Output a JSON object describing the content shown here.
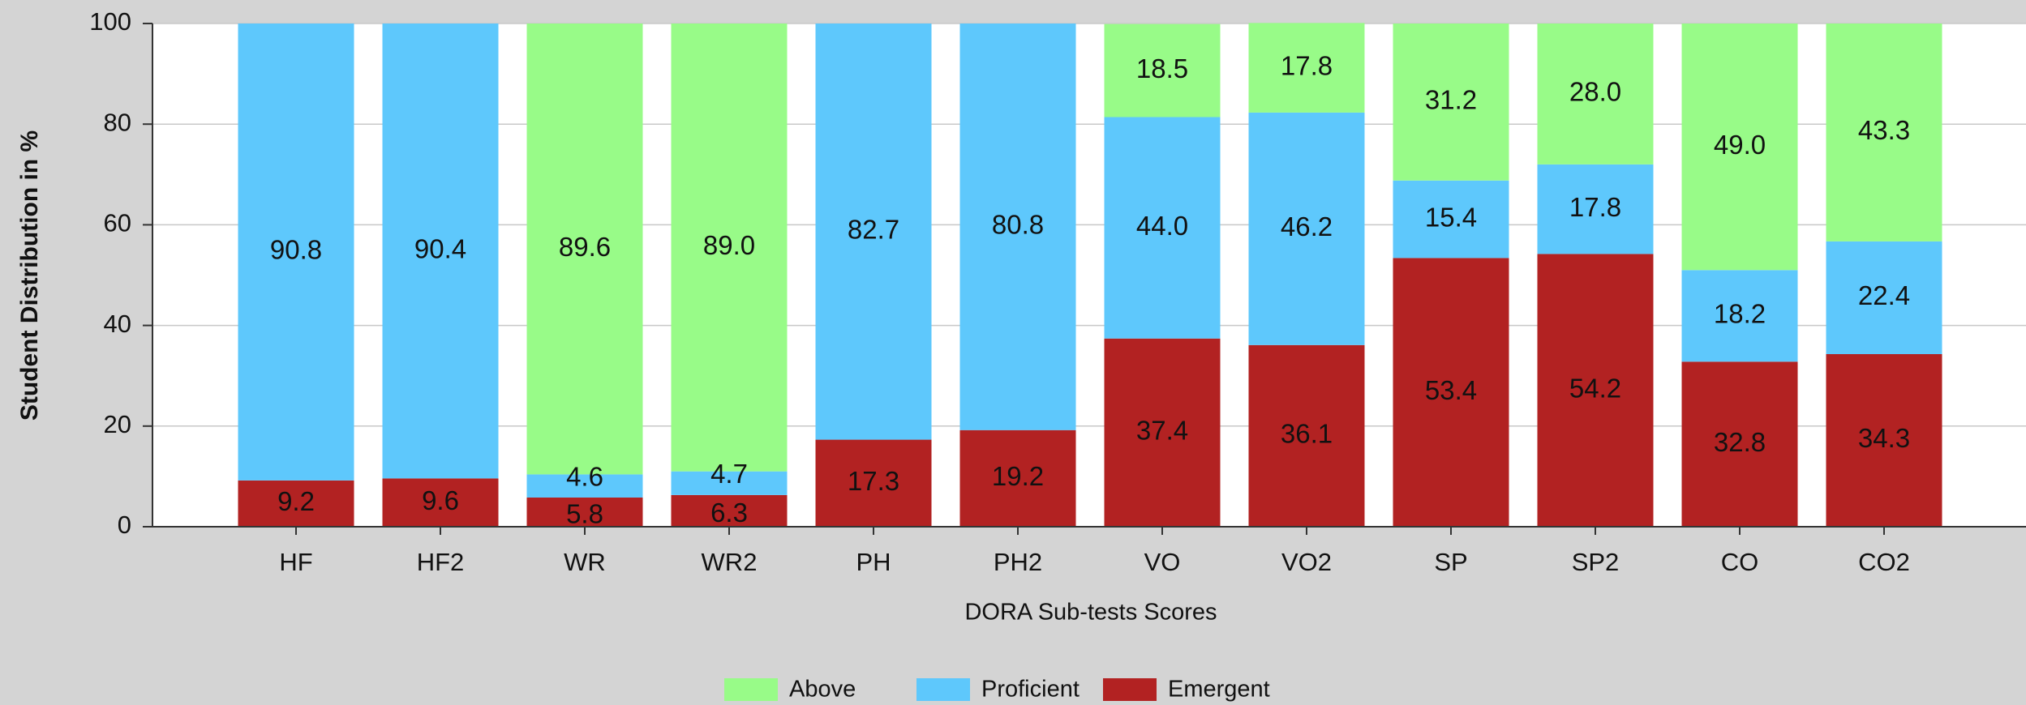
{
  "chart_data": {
    "type": "stacked_bar",
    "x_label": "DORA Sub-tests Scores",
    "y_label": "Student Distribution in %",
    "categories": [
      "HF",
      "HF2",
      "WR",
      "WR2",
      "PH",
      "PH2",
      "VO",
      "VO2",
      "SP",
      "SP2",
      "CO",
      "CO2"
    ],
    "series": [
      {
        "name": "Emergent",
        "color": "#b22222",
        "values": [
          9.2,
          9.6,
          5.8,
          6.3,
          17.3,
          19.2,
          37.4,
          36.1,
          53.4,
          54.2,
          32.8,
          34.3
        ],
        "value_labels": [
          "9.2",
          "9.6",
          "5.8",
          "6.3",
          "17.3",
          "19.2",
          "37.4",
          "36.1",
          "53.4",
          "54.2",
          "32.8",
          "34.3"
        ]
      },
      {
        "name": "Proficient",
        "color": "#5ec8fc",
        "values": [
          90.8,
          90.4,
          4.6,
          4.7,
          82.7,
          80.8,
          44.0,
          46.2,
          15.4,
          17.8,
          18.2,
          22.4
        ],
        "value_labels": [
          "90.8",
          "90.4",
          "4.6",
          "4.7",
          "82.7",
          "80.8",
          "44.0",
          "46.2",
          "15.4",
          "17.8",
          "18.2",
          "22.4"
        ]
      },
      {
        "name": "Above",
        "color": "#98fb88",
        "values": [
          null,
          null,
          89.6,
          89.0,
          null,
          null,
          18.5,
          17.8,
          31.2,
          28.0,
          49.0,
          43.3
        ],
        "value_labels": [
          null,
          null,
          "89.6",
          "89.0",
          null,
          null,
          "18.5",
          "17.8",
          "31.2",
          "28.0",
          "49.0",
          "43.3"
        ]
      }
    ],
    "ylim": [
      0,
      100
    ],
    "yticks": [
      0,
      20,
      40,
      60,
      80,
      100
    ],
    "grid": true
  }
}
